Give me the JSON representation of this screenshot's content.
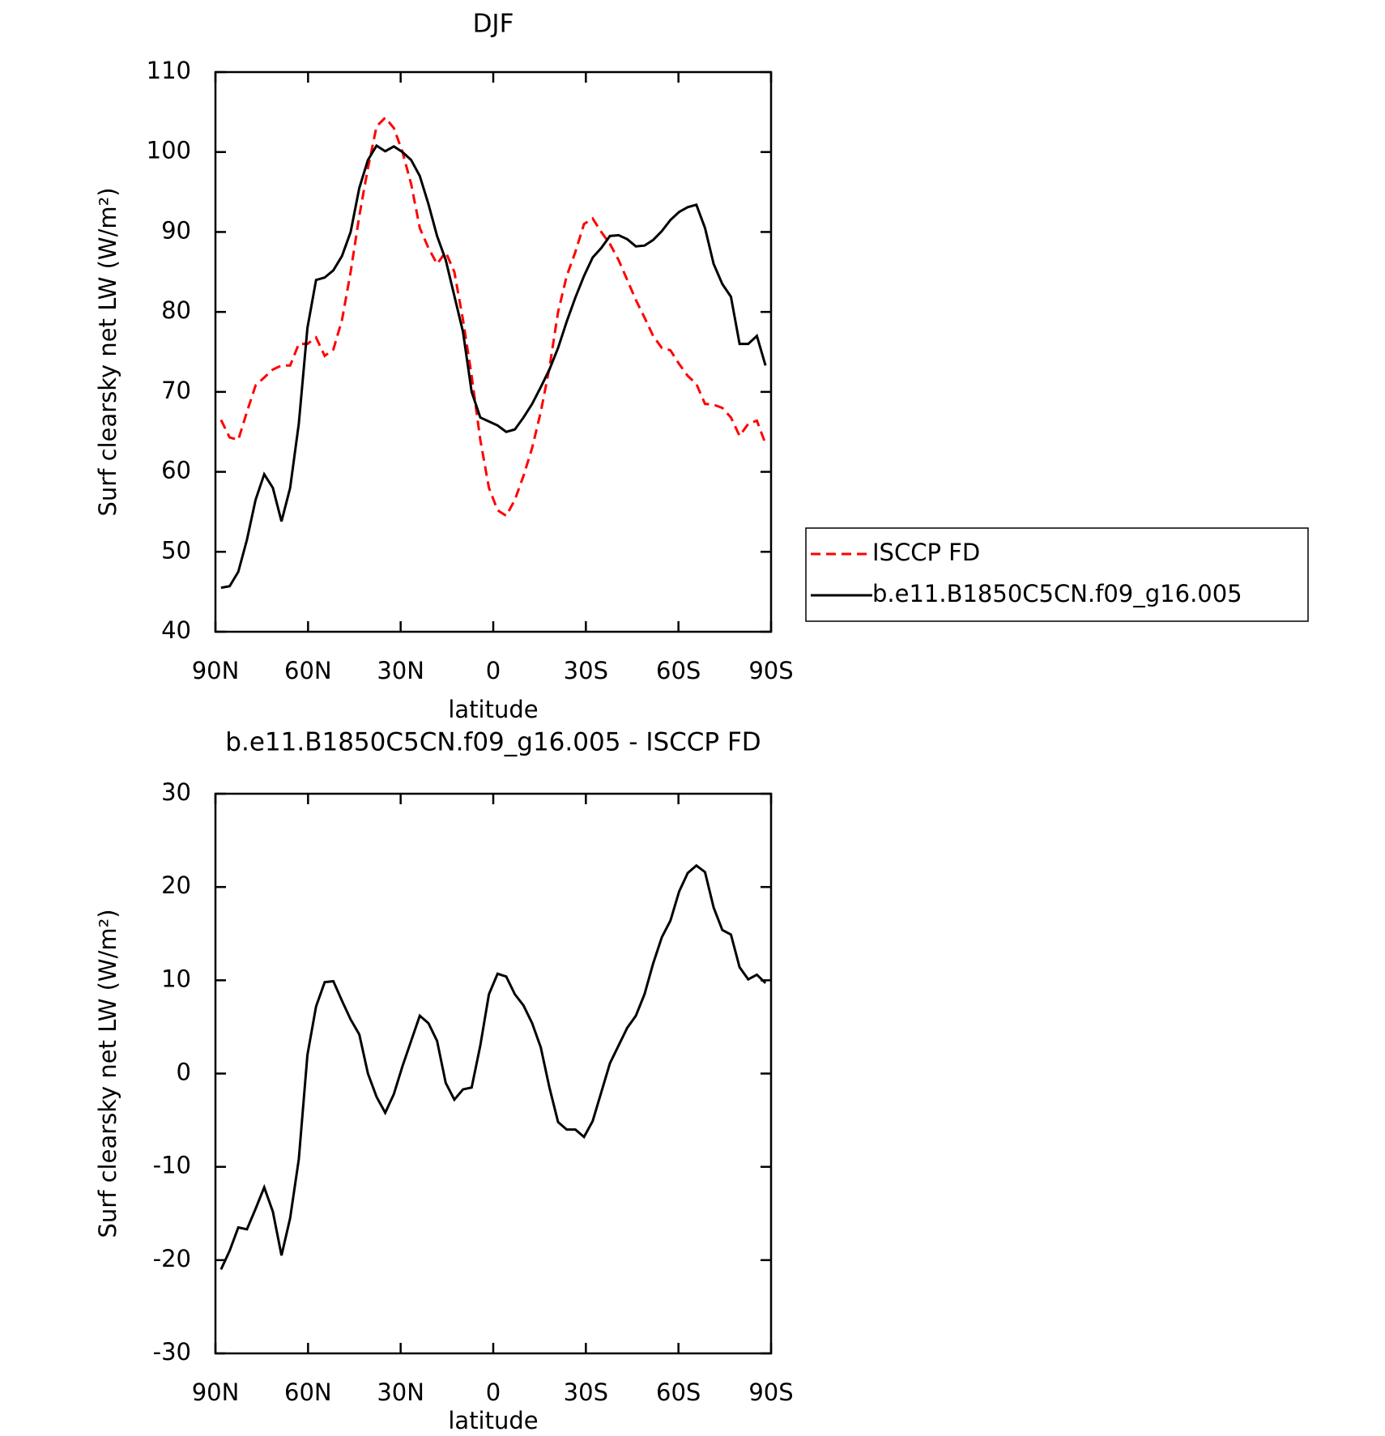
{
  "chart_data": [
    {
      "type": "line",
      "title": "DJF",
      "xlabel": "latitude",
      "ylabel": "Surf clearsky net LW (W/m²)",
      "x": [
        88.2,
        85.4,
        82.6,
        79.8,
        77.0,
        74.2,
        71.4,
        68.6,
        65.8,
        63.0,
        60.2,
        57.4,
        54.6,
        51.8,
        49.0,
        46.2,
        43.4,
        40.6,
        37.8,
        35.0,
        32.2,
        29.4,
        26.6,
        23.8,
        21.0,
        18.2,
        15.4,
        12.6,
        9.8,
        7.0,
        4.2,
        1.4,
        -1.4,
        -4.2,
        -7.0,
        -9.8,
        -12.6,
        -15.4,
        -18.2,
        -21.0,
        -23.8,
        -26.6,
        -29.4,
        -32.2,
        -35.0,
        -37.8,
        -40.6,
        -43.4,
        -46.2,
        -49.0,
        -51.8,
        -54.6,
        -57.4,
        -60.2,
        -63.0,
        -65.8,
        -68.6,
        -71.4,
        -74.2,
        -77.0,
        -79.8,
        -82.6,
        -85.4,
        -88.2
      ],
      "xlim": [
        90,
        -90
      ],
      "xticks": [
        {
          "value": 90,
          "label": "90N"
        },
        {
          "value": 60,
          "label": "60N"
        },
        {
          "value": 30,
          "label": "30N"
        },
        0,
        {
          "value": -30,
          "label": "30S"
        },
        {
          "value": -60,
          "label": "60S"
        },
        {
          "value": -90,
          "label": "90S"
        }
      ],
      "ylim": [
        40,
        110
      ],
      "yticks": [
        40,
        50,
        60,
        70,
        80,
        90,
        100,
        110
      ],
      "legend": "right",
      "series": [
        {
          "name": "ISCCP FD",
          "color": "#ff0000",
          "line_style": "dashed",
          "values": [
            66.5,
            64.3,
            64,
            67.5,
            70.8,
            71.8,
            72.8,
            73.3,
            73.3,
            76,
            76,
            76.8,
            74.5,
            75.3,
            79,
            85,
            92,
            98,
            103.2,
            104.3,
            103,
            100,
            96,
            90.5,
            88,
            86,
            87.5,
            85,
            79,
            72,
            64,
            58,
            55.2,
            54.5,
            56.5,
            59.5,
            63,
            67.5,
            73,
            80,
            84.5,
            87.5,
            91,
            91.7,
            90,
            88.5,
            86.5,
            84,
            81.5,
            79.3,
            77,
            75.5,
            75.2,
            73.5,
            72,
            71,
            68.5,
            68.4,
            68,
            66.8,
            64.5,
            66,
            66.4,
            63.5
          ]
        },
        {
          "name": "b.e11.B1850C5CN.f09_g16.005",
          "color": "#000000",
          "line_style": "solid",
          "values": [
            45.5,
            45.7,
            47.5,
            51.5,
            56.5,
            59.7,
            58,
            53.8,
            58,
            66,
            78,
            84,
            84.3,
            85.2,
            87,
            90,
            95.5,
            99,
            100.8,
            100.1,
            100.7,
            100,
            99,
            97,
            93.5,
            89.5,
            86.5,
            82,
            77.5,
            70,
            66.8,
            66.3,
            65.8,
            65,
            65.3,
            66.8,
            68.5,
            70.6,
            72.8,
            75.5,
            78.8,
            81.8,
            84.5,
            86.8,
            88,
            89.5,
            89.6,
            89.1,
            88.2,
            88.3,
            89,
            90.1,
            91.5,
            92.5,
            93.1,
            93.4,
            90.5,
            86,
            83.5,
            81.9,
            76,
            76,
            77,
            73.3
          ]
        }
      ]
    },
    {
      "type": "line",
      "title": "b.e11.B1850C5CN.f09_g16.005 - ISCCP FD",
      "xlabel": "latitude",
      "ylabel": "Surf clearsky net LW (W/m²)",
      "x": [
        88.2,
        85.4,
        82.6,
        79.8,
        77.0,
        74.2,
        71.4,
        68.6,
        65.8,
        63.0,
        60.2,
        57.4,
        54.6,
        51.8,
        49.0,
        46.2,
        43.4,
        40.6,
        37.8,
        35.0,
        32.2,
        29.4,
        26.6,
        23.8,
        21.0,
        18.2,
        15.4,
        12.6,
        9.8,
        7.0,
        4.2,
        1.4,
        -1.4,
        -4.2,
        -7.0,
        -9.8,
        -12.6,
        -15.4,
        -18.2,
        -21.0,
        -23.8,
        -26.6,
        -29.4,
        -32.2,
        -35.0,
        -37.8,
        -40.6,
        -43.4,
        -46.2,
        -49.0,
        -51.8,
        -54.6,
        -57.4,
        -60.2,
        -63.0,
        -65.8,
        -68.6,
        -71.4,
        -74.2,
        -77.0,
        -79.8,
        -82.6,
        -85.4,
        -88.2
      ],
      "xlim": [
        90,
        -90
      ],
      "xticks": [
        {
          "value": 90,
          "label": "90N"
        },
        {
          "value": 60,
          "label": "60N"
        },
        {
          "value": 30,
          "label": "30N"
        },
        0,
        {
          "value": -30,
          "label": "30S"
        },
        {
          "value": -60,
          "label": "60S"
        },
        {
          "value": -90,
          "label": "90S"
        }
      ],
      "ylim": [
        -30,
        30
      ],
      "yticks": [
        -30,
        -20,
        -10,
        0,
        10,
        20,
        30
      ],
      "series": [
        {
          "color": "#000000",
          "line_style": "solid",
          "values": [
            -21,
            -19,
            -16.5,
            -16.7,
            -14.5,
            -12.2,
            -14.8,
            -19.5,
            -15.5,
            -9.2,
            2,
            7.2,
            9.8,
            9.9,
            7.8,
            5.8,
            4.2,
            0,
            -2.5,
            -4.2,
            -2.2,
            0.8,
            3.5,
            6.2,
            5.4,
            3.5,
            -1,
            -2.8,
            -1.7,
            -1.5,
            3,
            8.5,
            10.7,
            10.4,
            8.5,
            7.3,
            5.4,
            2.8,
            -1.5,
            -5.2,
            -6,
            -6,
            -6.8,
            -5.1,
            -2,
            1.1,
            3,
            4.9,
            6.2,
            8.5,
            11.8,
            14.6,
            16.4,
            19.5,
            21.5,
            22.3,
            21.6,
            17.8,
            15.4,
            14.9,
            11.4,
            10.1,
            10.6,
            9.7
          ]
        }
      ]
    }
  ]
}
